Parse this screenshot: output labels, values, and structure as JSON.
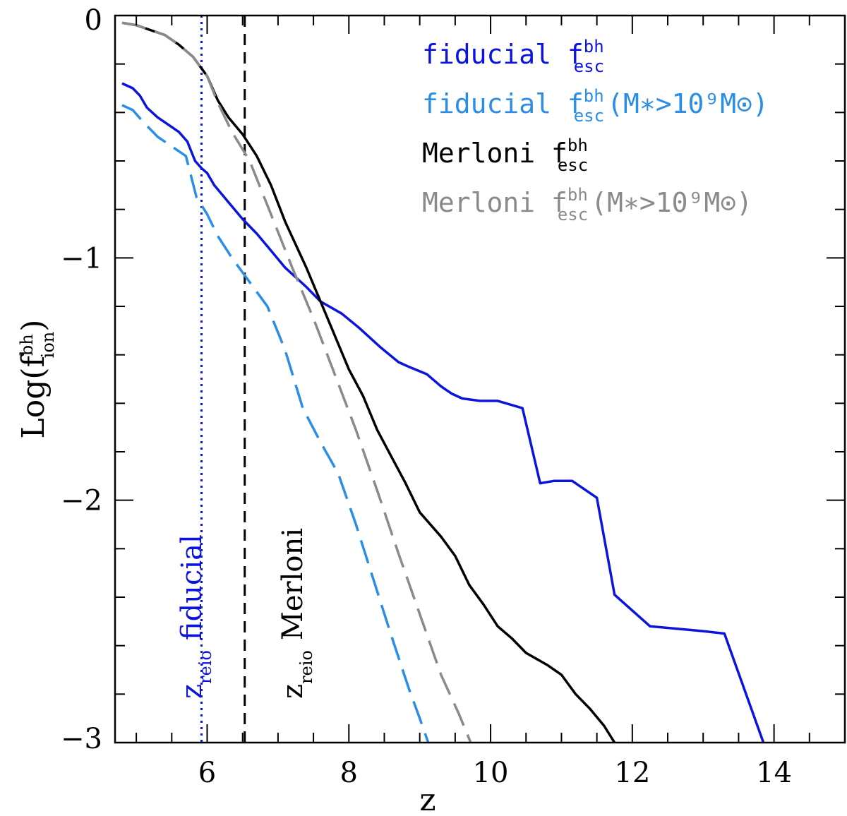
{
  "chart_data": {
    "type": "line",
    "xlabel": "z",
    "ylabel": {
      "base": "Log(f",
      "sup": "bh",
      "sub": "ion",
      "close": ")"
    },
    "xlim": [
      4.7,
      15
    ],
    "ylim": [
      -3,
      0
    ],
    "xticks": [
      6,
      8,
      10,
      12,
      14
    ],
    "yticks": [
      0,
      -1,
      -2,
      -3
    ],
    "xtick_labels": [
      "6",
      "8",
      "10",
      "12",
      "14"
    ],
    "ytick_labels": [
      "0",
      "−1",
      "−2",
      "−3"
    ],
    "colors": {
      "blue": "#0a14dc",
      "lightblue": "#2c8de6",
      "black": "#000000",
      "gray": "#8a8a8a"
    },
    "series": [
      {
        "id": "fiducial",
        "style": "solid",
        "color": "#0a14dc",
        "x": [
          4.8,
          4.95,
          5.05,
          5.15,
          5.3,
          5.5,
          5.6,
          5.72,
          5.83,
          5.92,
          6.0,
          6.1,
          6.3,
          6.5,
          6.7,
          6.9,
          7.1,
          7.4,
          7.6,
          7.9,
          8.15,
          8.45,
          8.7,
          8.85,
          9.1,
          9.3,
          9.45,
          9.6,
          9.85,
          10.1,
          10.45,
          10.7,
          10.9,
          11.15,
          11.5,
          11.75,
          12.25,
          13.0,
          13.3,
          13.85
        ],
        "y": [
          -0.28,
          -0.3,
          -0.33,
          -0.38,
          -0.42,
          -0.46,
          -0.48,
          -0.52,
          -0.6,
          -0.63,
          -0.65,
          -0.7,
          -0.77,
          -0.84,
          -0.9,
          -0.97,
          -1.04,
          -1.12,
          -1.18,
          -1.23,
          -1.29,
          -1.37,
          -1.43,
          -1.45,
          -1.48,
          -1.53,
          -1.56,
          -1.58,
          -1.59,
          -1.59,
          -1.62,
          -1.93,
          -1.92,
          -1.92,
          -1.99,
          -2.39,
          -2.52,
          -2.54,
          -2.55,
          -3.0
        ]
      },
      {
        "id": "fiducial-massive",
        "style": "dashed",
        "color": "#2c8de6",
        "x": [
          4.8,
          4.95,
          5.1,
          5.3,
          5.5,
          5.7,
          5.85,
          6.0,
          6.15,
          6.35,
          6.6,
          6.85,
          7.1,
          7.35,
          7.6,
          7.85,
          8.1,
          8.35,
          8.6,
          8.85,
          9.0,
          9.12
        ],
        "y": [
          -0.37,
          -0.39,
          -0.44,
          -0.5,
          -0.54,
          -0.58,
          -0.75,
          -0.82,
          -0.91,
          -1.0,
          -1.1,
          -1.2,
          -1.38,
          -1.62,
          -1.76,
          -1.89,
          -2.1,
          -2.33,
          -2.56,
          -2.78,
          -2.9,
          -3.0
        ]
      },
      {
        "id": "merloni",
        "style": "solid",
        "color": "#000000",
        "x": [
          4.8,
          5.0,
          5.2,
          5.4,
          5.6,
          5.8,
          6.0,
          6.15,
          6.3,
          6.5,
          6.7,
          6.9,
          7.1,
          7.4,
          7.7,
          8.0,
          8.2,
          8.4,
          8.6,
          8.8,
          9.0,
          9.3,
          9.5,
          9.7,
          9.9,
          10.1,
          10.3,
          10.5,
          10.8,
          11.0,
          11.2,
          11.4,
          11.6,
          11.75
        ],
        "y": [
          -0.03,
          -0.04,
          -0.06,
          -0.08,
          -0.12,
          -0.17,
          -0.25,
          -0.35,
          -0.42,
          -0.49,
          -0.58,
          -0.7,
          -0.85,
          -1.04,
          -1.25,
          -1.46,
          -1.57,
          -1.71,
          -1.82,
          -1.93,
          -2.05,
          -2.15,
          -2.23,
          -2.35,
          -2.43,
          -2.52,
          -2.57,
          -2.63,
          -2.68,
          -2.72,
          -2.8,
          -2.86,
          -2.93,
          -3.0
        ]
      },
      {
        "id": "merloni-massive",
        "style": "dashed",
        "color": "#8a8a8a",
        "x": [
          4.8,
          5.0,
          5.2,
          5.4,
          5.6,
          5.8,
          6.0,
          6.15,
          6.35,
          6.6,
          6.9,
          7.2,
          7.5,
          7.8,
          8.1,
          8.4,
          8.7,
          9.0,
          9.3,
          9.55,
          9.72
        ],
        "y": [
          -0.03,
          -0.04,
          -0.06,
          -0.08,
          -0.12,
          -0.17,
          -0.25,
          -0.36,
          -0.48,
          -0.6,
          -0.82,
          -1.04,
          -1.25,
          -1.48,
          -1.71,
          -1.96,
          -2.22,
          -2.47,
          -2.72,
          -2.88,
          -3.0
        ]
      }
    ],
    "vlines": [
      {
        "id": "zreio-fiducial",
        "x": 5.92,
        "style": "dotted",
        "color": "#0a14dc"
      },
      {
        "id": "zreio-merloni",
        "x": 6.53,
        "style": "dashed",
        "color": "#000000"
      }
    ],
    "legend": {
      "placement": "top-right",
      "entries": [
        {
          "name": "fiducial",
          "f": "f",
          "sup": "bh",
          "sub": "esc",
          "extra": "",
          "color": "#0a14dc"
        },
        {
          "name": "fiducial",
          "f": "f",
          "sup": "bh",
          "sub": "esc",
          "extra": "(M∗>10⁹M⊙)",
          "color": "#2c8de6"
        },
        {
          "name": "Merloni",
          "f": "f",
          "sup": "bh",
          "sub": "esc",
          "extra": "",
          "color": "#000000"
        },
        {
          "name": "Merloni",
          "f": "f",
          "sup": "bh",
          "sub": "esc",
          "extra": "(M∗>10⁹M⊙)",
          "color": "#8a8a8a"
        }
      ]
    },
    "annotations": [
      {
        "id": "zreio-fiducial-label",
        "z": "z",
        "sub": "reio",
        "text": "fiducial",
        "color": "#0a14dc"
      },
      {
        "id": "zreio-merloni-label",
        "z": "z",
        "sub": "reio",
        "text": "Merloni",
        "color": "#000000"
      }
    ]
  }
}
